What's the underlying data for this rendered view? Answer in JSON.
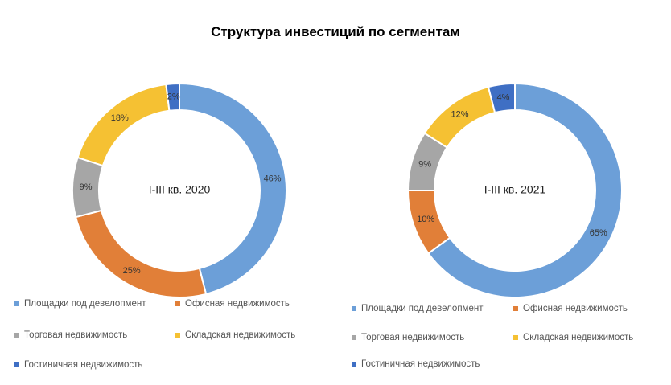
{
  "title": "Структура инвестиций по сегментам",
  "colors": {
    "Площадки под девелопмент": "#6C9FD8",
    "Офисная недвижимость": "#E17F38",
    "Торговая недвижимость": "#A6A6A6",
    "Складская недвижимость": "#F5C133",
    "Гостиничная недвижимость": "#3F6FC4"
  },
  "chart_data": [
    {
      "type": "pie",
      "center_label": "I-III кв. 2020",
      "categories": [
        "Площадки под девелопмент",
        "Офисная недвижимость",
        "Торговая недвижимость",
        "Складская недвижимость",
        "Гостиничная недвижимость"
      ],
      "values": [
        46,
        25,
        9,
        18,
        2
      ],
      "value_labels": [
        "46%",
        "25%",
        "9%",
        "18%",
        "2%"
      ],
      "legend_position": "bottom"
    },
    {
      "type": "pie",
      "center_label": "I-III кв. 2021",
      "categories": [
        "Площадки под девелопмент",
        "Офисная недвижимость",
        "Торговая недвижимость",
        "Складская недвижимость",
        "Гостиничная недвижимость"
      ],
      "values": [
        65,
        10,
        9,
        12,
        4
      ],
      "value_labels": [
        "65%",
        "10%",
        "9%",
        "12%",
        "4%"
      ],
      "legend_position": "bottom"
    }
  ]
}
